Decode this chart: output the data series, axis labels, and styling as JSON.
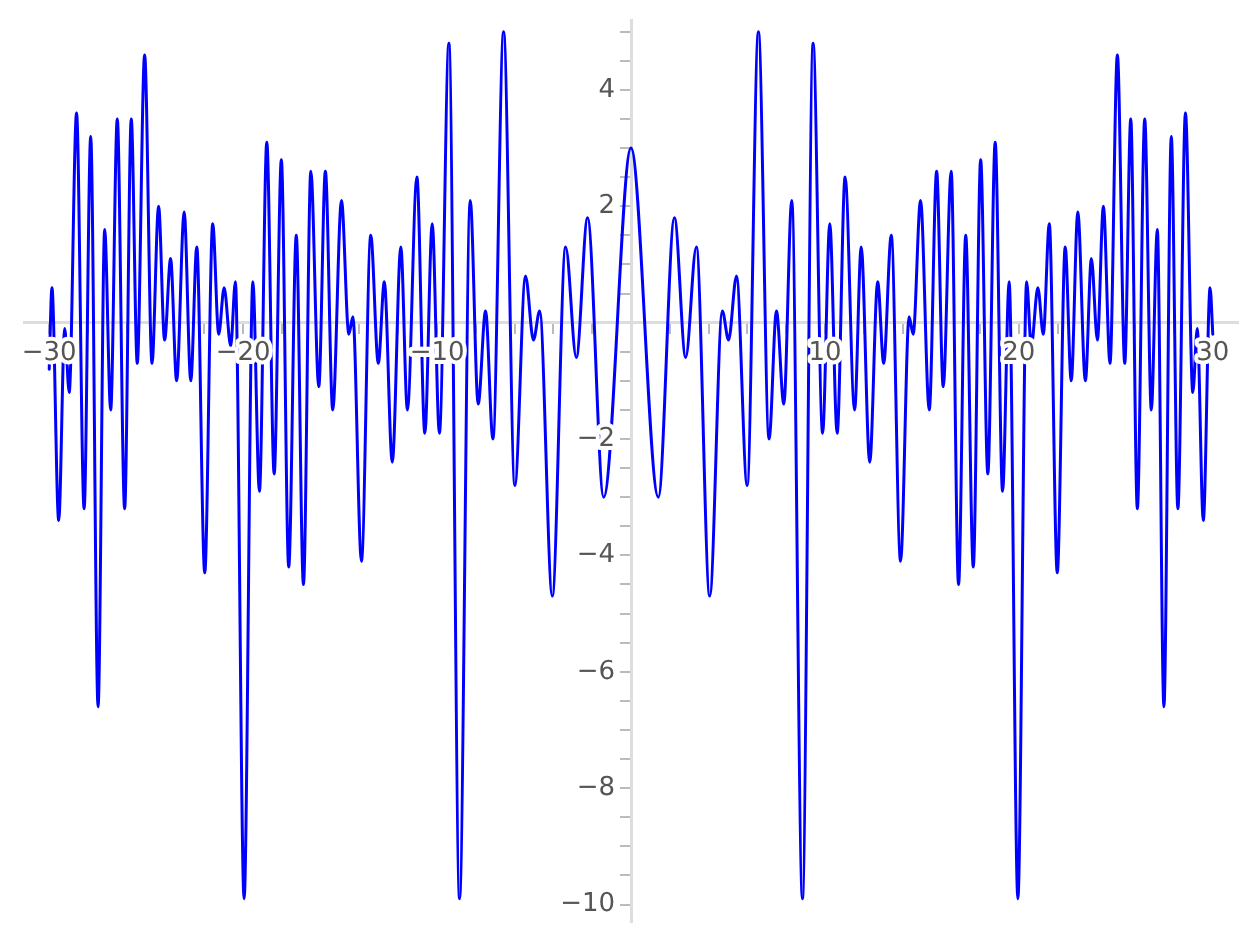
{
  "chart_data": {
    "type": "line",
    "color": "#0000ff",
    "marker": "none",
    "line_style": "solid",
    "grid": false,
    "legend": false,
    "xlim": [
      -31.3,
      31.3
    ],
    "ylim": [
      -10.3,
      5.2
    ],
    "xticks": [
      {
        "value": -30,
        "label": "−30"
      },
      {
        "value": -28,
        "label": null
      },
      {
        "value": -26,
        "label": null
      },
      {
        "value": -24,
        "label": null
      },
      {
        "value": -22,
        "label": null
      },
      {
        "value": -20,
        "label": "−20"
      },
      {
        "value": -18,
        "label": null
      },
      {
        "value": -16,
        "label": null
      },
      {
        "value": -14,
        "label": null
      },
      {
        "value": -12,
        "label": null
      },
      {
        "value": -10,
        "label": "−10"
      },
      {
        "value": -8,
        "label": null
      },
      {
        "value": -6,
        "label": null
      },
      {
        "value": -4,
        "label": null
      },
      {
        "value": -2,
        "label": null
      },
      {
        "value": 2,
        "label": null
      },
      {
        "value": 4,
        "label": null
      },
      {
        "value": 6,
        "label": null
      },
      {
        "value": 8,
        "label": null
      },
      10,
      {
        "value": 12,
        "label": null
      },
      {
        "value": 14,
        "label": null
      },
      {
        "value": 16,
        "label": null
      },
      {
        "value": 18,
        "label": null
      },
      20,
      {
        "value": 22,
        "label": null
      },
      {
        "value": 24,
        "label": null
      },
      {
        "value": 26,
        "label": null
      },
      {
        "value": 28,
        "label": null
      },
      30
    ],
    "yticks": [
      {
        "value": -10,
        "label": "−10"
      },
      {
        "value": -9.5,
        "label": null
      },
      {
        "value": -9,
        "label": null
      },
      {
        "value": -8.5,
        "label": null
      },
      {
        "value": -8,
        "label": "−8"
      },
      {
        "value": -7.5,
        "label": null
      },
      {
        "value": -7,
        "label": null
      },
      {
        "value": -6.5,
        "label": null
      },
      {
        "value": -6,
        "label": "−6"
      },
      {
        "value": -5.5,
        "label": null
      },
      {
        "value": -5,
        "label": null
      },
      {
        "value": -4.5,
        "label": null
      },
      {
        "value": -4,
        "label": "−4"
      },
      {
        "value": -3.5,
        "label": null
      },
      {
        "value": -3,
        "label": null
      },
      {
        "value": -2.5,
        "label": null
      },
      {
        "value": -2,
        "label": "−2"
      },
      {
        "value": -1.5,
        "label": null
      },
      {
        "value": -1,
        "label": null
      },
      {
        "value": -0.5,
        "label": null
      },
      {
        "value": 0.5,
        "label": null
      },
      {
        "value": 1,
        "label": null
      },
      {
        "value": 1.5,
        "label": null
      },
      2,
      {
        "value": 2.5,
        "label": null
      },
      {
        "value": 3,
        "label": null
      },
      {
        "value": 3.5,
        "label": null
      },
      4,
      {
        "value": 4.5,
        "label": null
      },
      {
        "value": 5,
        "label": null
      }
    ],
    "x": [
      -30,
      -29.86,
      -29.51,
      -29.2,
      -28.97,
      -28.59,
      -28.2,
      -27.86,
      -27.48,
      -27.14,
      -26.83,
      -26.49,
      -26.11,
      -25.77,
      -25.46,
      -25.08,
      -24.7,
      -24.36,
      -24.05,
      -23.74,
      -23.43,
      -23.04,
      -22.7,
      -22.39,
      -21.98,
      -21.57,
      -21.26,
      -20.98,
      -20.64,
      -20.4,
      -19.95,
      -19.5,
      -19.16,
      -18.78,
      -18.4,
      -18.03,
      -17.65,
      -17.26,
      -16.89,
      -16.51,
      -16.1,
      -15.76,
      -15.38,
      -14.93,
      -14.55,
      -14.34,
      -13.9,
      -13.42,
      -13.03,
      -12.72,
      -12.31,
      -11.87,
      -11.53,
      -11.04,
      -10.63,
      -10.25,
      -9.88,
      -9.39,
      -8.84,
      -8.29,
      -7.88,
      -7.5,
      -7.12,
      -6.57,
      -5.99,
      -5.44,
      -5.03,
      -4.71,
      -4.06,
      -3.37,
      -2.82,
      -2.24,
      -1.41,
      0,
      1.41,
      2.24,
      2.82,
      3.37,
      4.06,
      4.71,
      5.03,
      5.44,
      5.99,
      6.57,
      7.12,
      7.5,
      7.88,
      8.29,
      8.84,
      9.39,
      9.88,
      10.25,
      10.63,
      11.04,
      11.53,
      11.87,
      12.31,
      12.72,
      13.03,
      13.42,
      13.9,
      14.34,
      14.55,
      14.93,
      15.38,
      15.76,
      16.1,
      16.51,
      16.89,
      17.26,
      17.65,
      18.03,
      18.4,
      18.78,
      19.16,
      19.5,
      19.95,
      20.4,
      20.64,
      20.98,
      21.26,
      21.57,
      21.98,
      22.39,
      22.7,
      23.04,
      23.43,
      23.74,
      24.05,
      24.36,
      24.7,
      25.08,
      25.46,
      25.77,
      26.11,
      26.49,
      26.83,
      27.14,
      27.48,
      27.86,
      28.2,
      28.59,
      28.97,
      29.2,
      29.51,
      29.86,
      30
    ],
    "values": [
      -0.8,
      0.6,
      -3.4,
      -0.1,
      -1.2,
      3.6,
      -3.2,
      3.2,
      -6.6,
      1.6,
      -1.5,
      3.5,
      -3.2,
      3.5,
      -0.7,
      4.6,
      -0.7,
      2,
      -0.3,
      1.1,
      -1,
      1.9,
      -1,
      1.3,
      -4.3,
      1.7,
      -0.2,
      0.6,
      -0.4,
      0.7,
      -9.9,
      0.7,
      -2.9,
      3.1,
      -2.6,
      2.8,
      -4.2,
      1.5,
      -4.5,
      2.6,
      -1.1,
      2.6,
      -1.5,
      2.1,
      -0.2,
      0.1,
      -4.1,
      1.5,
      -0.7,
      0.7,
      -2.4,
      1.3,
      -1.5,
      2.5,
      -1.9,
      1.7,
      -1.9,
      4.8,
      -9.9,
      2.1,
      -1.4,
      0.2,
      -2,
      5,
      -2.8,
      0.8,
      -0.3,
      0.2,
      -4.7,
      1.3,
      -0.6,
      1.8,
      -3,
      3,
      -3,
      1.8,
      -0.6,
      1.3,
      -4.7,
      0.2,
      -0.3,
      0.8,
      -2.8,
      5,
      -2,
      0.2,
      -1.4,
      2.1,
      -9.9,
      4.8,
      -1.9,
      1.7,
      -1.9,
      2.5,
      -1.5,
      1.3,
      -2.4,
      0.7,
      -0.7,
      1.5,
      -4.1,
      0.1,
      -0.2,
      2.1,
      -1.5,
      2.6,
      -1.1,
      2.6,
      -4.5,
      1.5,
      -4.2,
      2.8,
      -2.6,
      3.1,
      -2.9,
      0.7,
      -9.9,
      0.7,
      -0.4,
      0.6,
      -0.2,
      1.7,
      -4.3,
      1.3,
      -1,
      1.9,
      -1,
      1.1,
      -0.3,
      2,
      -0.7,
      4.6,
      -0.7,
      3.5,
      -3.2,
      3.5,
      -1.5,
      1.6,
      -6.6,
      3.2,
      -3.2,
      3.6,
      -1.2,
      -0.1,
      -3.4,
      0.6,
      -0.2
    ]
  }
}
